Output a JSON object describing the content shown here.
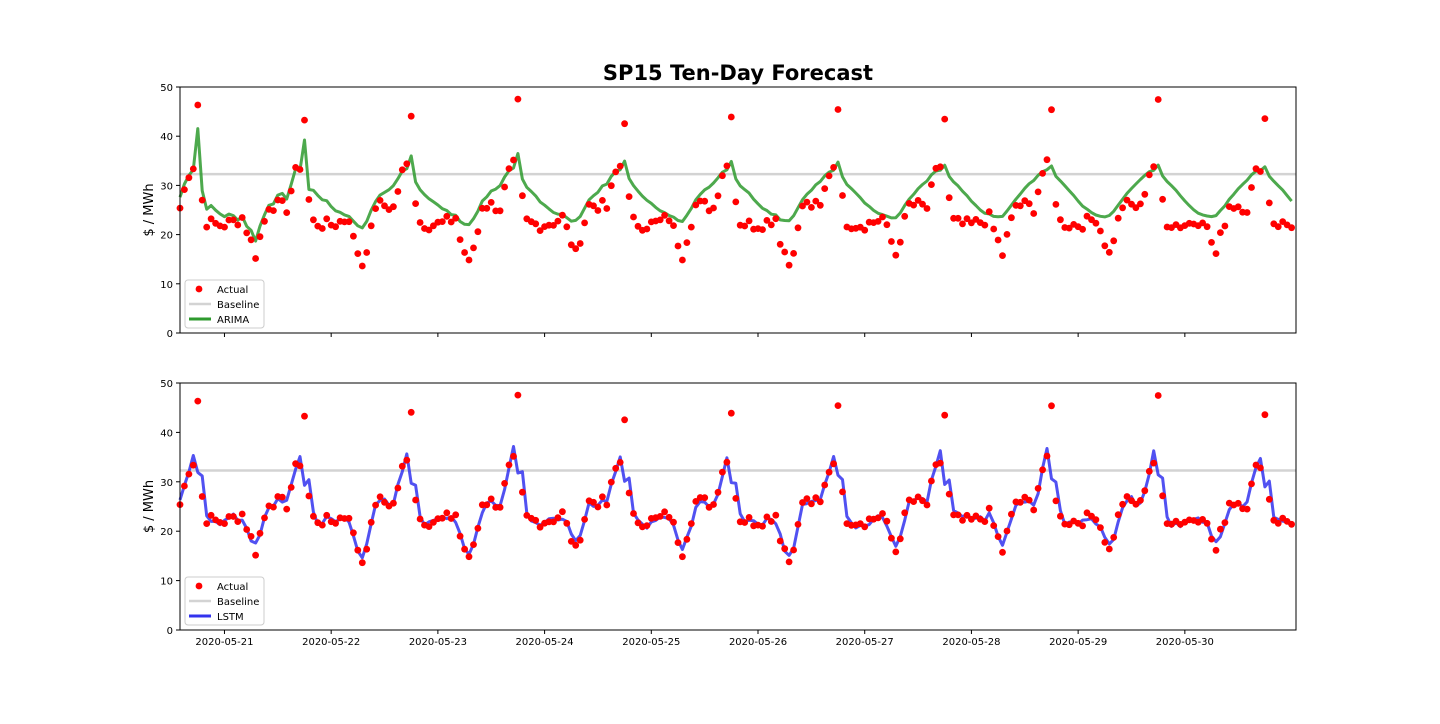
{
  "figure": {
    "title": "SP15 Ten-Day Forecast",
    "colors": {
      "actual": "#ff0000",
      "baseline": "#d3d3d3",
      "arima": "#2e9a2e",
      "lstm": "#3333ee"
    }
  },
  "chart_data": [
    {
      "type": "line",
      "panel": "top",
      "ylabel": "$ / MWh",
      "xlabel": "",
      "ylim": [
        0,
        50
      ],
      "yticks": [
        0,
        10,
        20,
        30,
        40,
        50
      ],
      "x_type": "date",
      "xlim": [
        "2020-05-20 14:00",
        "2020-05-31 01:00"
      ],
      "xticks": [
        "2020-05-21",
        "2020-05-22",
        "2020-05-23",
        "2020-05-24",
        "2020-05-25",
        "2020-05-26",
        "2020-05-27",
        "2020-05-28",
        "2020-05-29",
        "2020-05-30"
      ],
      "legend_position": "lower-left",
      "grid": false,
      "baseline_value": 32.3,
      "series": [
        {
          "name": "Actual",
          "kind": "scatter",
          "color": "#ff0000"
        },
        {
          "name": "Baseline",
          "kind": "line",
          "color": "#d3d3d3"
        },
        {
          "name": "ARIMA",
          "kind": "line",
          "color": "#2e9a2e"
        }
      ]
    },
    {
      "type": "line",
      "panel": "bottom",
      "ylabel": "$ / MWh",
      "xlabel": "",
      "ylim": [
        0,
        50
      ],
      "yticks": [
        0,
        10,
        20,
        30,
        40,
        50
      ],
      "x_type": "date",
      "xlim": [
        "2020-05-20 14:00",
        "2020-05-31 01:00"
      ],
      "xticks": [
        "2020-05-21",
        "2020-05-22",
        "2020-05-23",
        "2020-05-24",
        "2020-05-25",
        "2020-05-26",
        "2020-05-27",
        "2020-05-28",
        "2020-05-29",
        "2020-05-30"
      ],
      "legend_position": "lower-left",
      "grid": false,
      "baseline_value": 32.3,
      "series": [
        {
          "name": "Actual",
          "kind": "scatter",
          "color": "#ff0000"
        },
        {
          "name": "Baseline",
          "kind": "line",
          "color": "#d3d3d3"
        },
        {
          "name": "LSTM",
          "kind": "line",
          "color": "#3333ee"
        }
      ]
    }
  ]
}
